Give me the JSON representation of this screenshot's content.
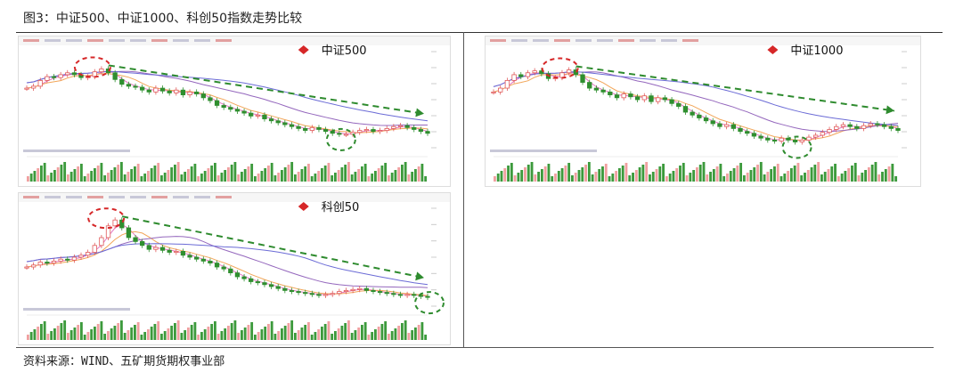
{
  "figure": {
    "title": "图3：中证500、中证1000、科创50指数走势比较",
    "source": "资料来源：WIND、五矿期货期权事业部"
  },
  "chart_data": [
    {
      "type": "line",
      "title": "中证500",
      "legend_marker_color": "#d62728",
      "series": [
        {
          "values": [
            62,
            64,
            70,
            74,
            73,
            76,
            78,
            76,
            73,
            74,
            79,
            82,
            78,
            71,
            66,
            64,
            63,
            60,
            58,
            62,
            59,
            57,
            60,
            55,
            58,
            56,
            52,
            49,
            44,
            42,
            40,
            38,
            36,
            33,
            34,
            30,
            28,
            26,
            24,
            22,
            20,
            18,
            21,
            19,
            17,
            15,
            14,
            14,
            16,
            18,
            19,
            17,
            18,
            20,
            22,
            23,
            21,
            19,
            17,
            15
          ]
        }
      ],
      "annotations": [
        "downtrend-arrow",
        "peak-circle",
        "trough-circle"
      ]
    },
    {
      "type": "line",
      "title": "中证1000",
      "legend_marker_color": "#d62728",
      "series": [
        {
          "values": [
            58,
            62,
            70,
            76,
            74,
            78,
            80,
            77,
            72,
            73,
            78,
            81,
            76,
            68,
            62,
            60,
            58,
            55,
            52,
            56,
            53,
            50,
            54,
            48,
            52,
            50,
            46,
            43,
            37,
            34,
            31,
            28,
            25,
            22,
            24,
            20,
            17,
            15,
            12,
            10,
            8,
            7,
            10,
            8,
            6,
            8,
            11,
            13,
            16,
            19,
            22,
            24,
            22,
            20,
            23,
            25,
            24,
            22,
            20,
            18
          ]
        }
      ],
      "annotations": [
        "downtrend-arrow",
        "peak-circle",
        "trough-circle"
      ]
    },
    {
      "type": "line",
      "title": "科创50",
      "legend_marker_color": "#d62728",
      "series": [
        {
          "values": [
            40,
            42,
            45,
            44,
            46,
            48,
            47,
            50,
            52,
            55,
            62,
            70,
            82,
            88,
            80,
            70,
            66,
            62,
            58,
            60,
            57,
            55,
            56,
            52,
            50,
            48,
            46,
            44,
            40,
            38,
            34,
            30,
            28,
            25,
            24,
            22,
            20,
            18,
            16,
            15,
            14,
            13,
            12,
            11,
            12,
            13,
            15,
            16,
            17,
            18,
            16,
            15,
            14,
            13,
            12,
            11,
            12,
            11,
            10,
            9
          ]
        }
      ],
      "annotations": [
        "downtrend-arrow",
        "peak-circle",
        "trough-circle"
      ]
    }
  ]
}
